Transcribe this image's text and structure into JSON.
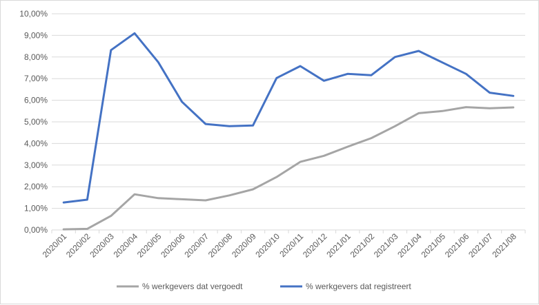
{
  "chart_data": {
    "type": "line",
    "title": "",
    "xlabel": "",
    "ylabel": "",
    "categories": [
      "2020/01",
      "2020/02",
      "2020/03",
      "2020/04",
      "2020/05",
      "2020/06",
      "2020/07",
      "2020/08",
      "2020/09",
      "2020/10",
      "2020/11",
      "2020/12",
      "2021/01",
      "2021/02",
      "2021/03",
      "2021/04",
      "2021/05",
      "2021/06",
      "2021/07",
      "2021/08"
    ],
    "y_ticks": [
      "0,00%",
      "1,00%",
      "2,00%",
      "3,00%",
      "4,00%",
      "5,00%",
      "6,00%",
      "7,00%",
      "8,00%",
      "9,00%",
      "10,00%"
    ],
    "ylim": [
      0,
      10
    ],
    "grid": "horizontal",
    "legend_position": "bottom",
    "series": [
      {
        "name": "% werkgevers dat vergoedt",
        "color": "#a5a5a5",
        "values": [
          0.03,
          0.05,
          0.65,
          1.65,
          1.47,
          1.42,
          1.37,
          1.6,
          1.88,
          2.45,
          3.15,
          3.43,
          3.85,
          4.25,
          4.8,
          5.4,
          5.5,
          5.68,
          5.63,
          5.67
        ]
      },
      {
        "name": "% werkgevers dat registreert",
        "color": "#4472c4",
        "values": [
          1.27,
          1.4,
          8.32,
          9.1,
          7.76,
          5.93,
          4.9,
          4.8,
          4.83,
          7.03,
          7.58,
          6.9,
          7.22,
          7.16,
          8.0,
          8.28,
          7.75,
          7.22,
          6.35,
          6.2
        ]
      }
    ]
  }
}
